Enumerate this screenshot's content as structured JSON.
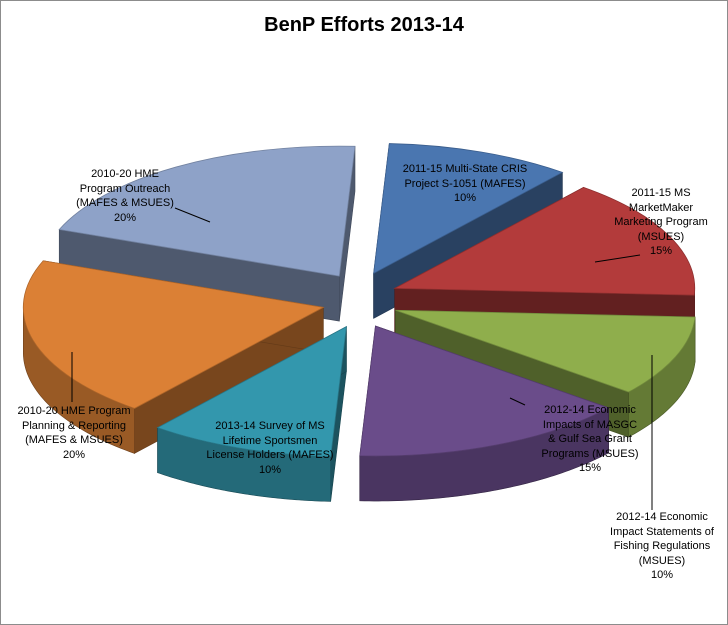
{
  "chart_data": {
    "type": "pie",
    "title": "BenP Efforts 2013-14",
    "three_d": true,
    "exploded": true,
    "slices": [
      {
        "label": "2011-15 Multi-State CRIS Project S-1051 (MAFES)",
        "value": 10,
        "pct_label": "10%",
        "color": "#4a76b0"
      },
      {
        "label": "2011-15 MS MarketMaker Marketing Program (MSUES)",
        "value": 15,
        "pct_label": "15%",
        "color": "#b33b3b"
      },
      {
        "label": "2012-14 Economic Impact Statements of Fishing Regulations (MSUES)",
        "value": 10,
        "pct_label": "10%",
        "color": "#8fae4c"
      },
      {
        "label": "2012-14 Economic Impacts of MASGC & Gulf Sea Grant Programs (MSUES)",
        "value": 15,
        "pct_label": "15%",
        "color": "#6a4c8a"
      },
      {
        "label": "2013-14 Survey of MS Lifetime Sportsmen License Holders (MAFES)",
        "value": 10,
        "pct_label": "10%",
        "color": "#3397ad"
      },
      {
        "label": "2010-20 HME Program Planning & Reporting (MAFES & MSUES)",
        "value": 20,
        "pct_label": "20%",
        "color": "#db8035"
      },
      {
        "label": "2010-20 HME Program Outreach (MAFES & MSUES)",
        "value": 20,
        "pct_label": "20%",
        "color": "#8ea2c8"
      }
    ]
  },
  "labels": [
    {
      "lines": [
        "2011-15 Multi-State CRIS",
        "Project S-1051 (MAFES)",
        "10%"
      ]
    },
    {
      "lines": [
        "2011-15 MS",
        "MarketMaker",
        "Marketing Program",
        "(MSUES)",
        "15%"
      ]
    },
    {
      "lines": [
        "2012-14 Economic",
        "Impact Statements  of",
        "Fishing Regulations",
        "(MSUES)",
        "10%"
      ]
    },
    {
      "lines": [
        "2012-14 Economic",
        "Impacts of MASGC",
        "& Gulf Sea Grant",
        "Programs (MSUES)",
        "15%"
      ]
    },
    {
      "lines": [
        "2013-14 Survey of MS",
        "Lifetime Sportsmen",
        "License Holders (MAFES)",
        "10%"
      ]
    },
    {
      "lines": [
        "2010-20 HME Program",
        "Planning & Reporting",
        "(MAFES & MSUES)",
        "20%"
      ]
    },
    {
      "lines": [
        "2010-20 HME",
        "Program Outreach",
        "(MAFES & MSUES)",
        "20%"
      ]
    }
  ]
}
